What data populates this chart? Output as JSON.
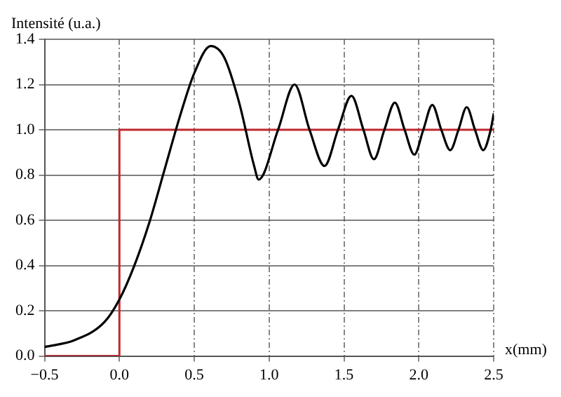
{
  "chart_data": {
    "type": "line",
    "ylabel": "Intensité (u.a.)",
    "xlabel": "x(mm)",
    "xlim": [
      -0.5,
      2.5
    ],
    "xticks": [
      {
        "value": -0.5,
        "label": "−0.5"
      },
      {
        "value": 0,
        "label": "0.0"
      },
      {
        "value": 0.5,
        "label": "0.5"
      },
      {
        "value": 1,
        "label": "1.0"
      },
      {
        "value": 1.5,
        "label": "1.5"
      },
      {
        "value": 2,
        "label": "2.0"
      },
      {
        "value": 2.5,
        "label": "2.5"
      }
    ],
    "ylim": [
      0,
      1.4
    ],
    "yticks": [
      {
        "value": 0,
        "label": "0.0"
      },
      {
        "value": 0.2,
        "label": "0.2"
      },
      {
        "value": 0.4,
        "label": "0.4"
      },
      {
        "value": 0.6,
        "label": "0.6"
      },
      {
        "value": 0.8,
        "label": "0.8"
      },
      {
        "value": 1,
        "label": "1.0"
      },
      {
        "value": 1.2,
        "label": "1.2"
      },
      {
        "value": 1.4,
        "label": "1.4"
      }
    ],
    "grid": true,
    "marker": "none",
    "series": [
      {
        "color": "#000000",
        "x": [
          -0.5,
          -0.3,
          -0.1,
          0,
          0.1,
          0.2,
          0.3,
          0.4,
          0.5,
          0.61,
          0.7,
          0.8,
          0.9,
          0.93,
          1.06,
          1.17,
          1.27,
          1.37,
          1.46,
          1.55,
          1.63,
          1.7,
          1.77,
          1.84,
          1.905,
          1.97,
          2.03,
          2.09,
          2.15,
          2.21,
          2.265,
          2.32,
          2.375,
          2.43,
          2.48,
          2.5
        ],
        "values": [
          0.04,
          0.07,
          0.15,
          0.25,
          0.4,
          0.59,
          0.82,
          1.05,
          1.25,
          1.37,
          1.32,
          1.12,
          0.84,
          0.78,
          1.0,
          1.2,
          1.0,
          0.84,
          1.0,
          1.15,
          1.0,
          0.87,
          1.0,
          1.12,
          1.0,
          0.89,
          1.0,
          1.11,
          1.0,
          0.91,
          1.0,
          1.1,
          1.0,
          0.91,
          1.0,
          1.07
        ]
      },
      {
        "type": "step",
        "color": "#c0282d",
        "x": [
          -0.5,
          0,
          0,
          2.5
        ],
        "values": [
          0,
          0,
          1,
          1
        ]
      }
    ]
  }
}
